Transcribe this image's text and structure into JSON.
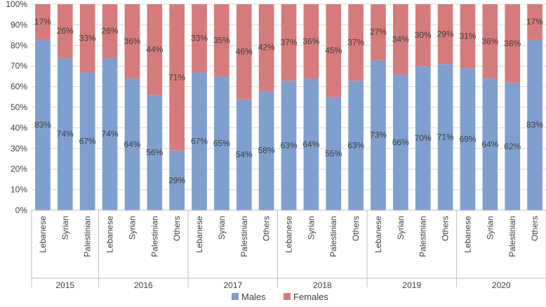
{
  "chart_data": {
    "type": "bar",
    "stacked": true,
    "percent": true,
    "ylim": [
      0,
      100
    ],
    "yticks": [
      0,
      10,
      20,
      30,
      40,
      50,
      60,
      70,
      80,
      90,
      100
    ],
    "ytick_suffix": "%",
    "grid": true,
    "legend_position": "bottom-center",
    "groups": [
      {
        "label": "2015",
        "categories": [
          "Lebanese",
          "Syrian",
          "Palestinian"
        ]
      },
      {
        "label": "2016",
        "categories": [
          "Lebanese",
          "Syrian",
          "Palestinian",
          "Others"
        ]
      },
      {
        "label": "2017",
        "categories": [
          "Lebanese",
          "Syrian",
          "Palestinian",
          "Others"
        ]
      },
      {
        "label": "2018",
        "categories": [
          "Lebanese",
          "Syrian",
          "Palestinian",
          "Others"
        ]
      },
      {
        "label": "2019",
        "categories": [
          "Lebanese",
          "Syrian",
          "Palestinian",
          "Others"
        ]
      },
      {
        "label": "2020",
        "categories": [
          "Lebanese",
          "Syrian",
          "Palestinian",
          "Others"
        ]
      }
    ],
    "series": [
      {
        "name": "Males",
        "color": "#7F9FCF",
        "values": [
          83,
          74,
          67,
          74,
          64,
          56,
          29,
          67,
          65,
          54,
          58,
          63,
          64,
          55,
          63,
          73,
          66,
          70,
          71,
          69,
          64,
          62,
          83
        ]
      },
      {
        "name": "Females",
        "color": "#D67B7C",
        "values": [
          17,
          26,
          33,
          26,
          36,
          44,
          71,
          33,
          35,
          46,
          42,
          37,
          36,
          45,
          37,
          27,
          34,
          30,
          29,
          31,
          36,
          38,
          17
        ]
      }
    ]
  }
}
